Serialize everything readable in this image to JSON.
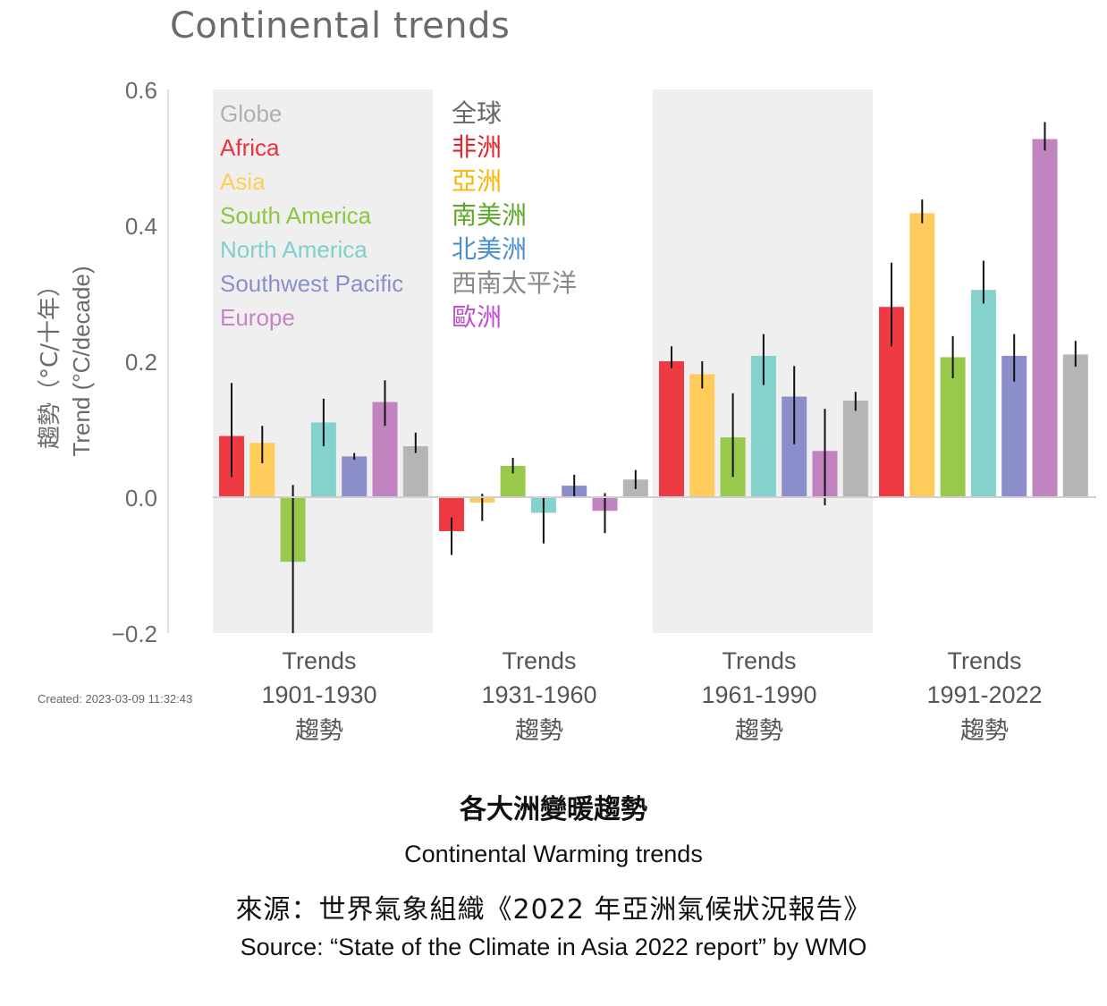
{
  "chart_data": {
    "type": "bar",
    "title": "Continental trends",
    "ylabel_zh": "趨勢（°C/十年）",
    "ylabel_en": "Trend (°C/decade)",
    "ylim": [
      -0.2,
      0.6
    ],
    "yticks": [
      {
        "value": 0.6,
        "label": "0.6"
      },
      {
        "value": 0.4,
        "label": "0.4"
      },
      {
        "value": 0.2,
        "label": "0.2"
      },
      {
        "value": 0.0,
        "label": "0.0"
      },
      {
        "value": -0.2,
        "label": "−0.2"
      }
    ],
    "created": "Created: 2023-03-09 11:32:43",
    "legend_placement": "top-left",
    "series": [
      {
        "name": "Africa",
        "name_zh": "非洲",
        "color": "#ee3a43"
      },
      {
        "name": "Asia",
        "name_zh": "亞洲",
        "color": "#ffcc5c"
      },
      {
        "name": "South America",
        "name_zh": "南美洲",
        "color": "#98c94a"
      },
      {
        "name": "North America",
        "name_zh": "北美洲",
        "color": "#85d1cc"
      },
      {
        "name": "Southwest Pacific",
        "name_zh": "西南太平洋",
        "color": "#8b8ec9"
      },
      {
        "name": "Europe",
        "name_zh": "歐洲",
        "color": "#c284c1"
      },
      {
        "name": "Globe",
        "name_zh": "全球",
        "color": "#b5b5b5"
      }
    ],
    "legend_order": [
      "Globe",
      "Africa",
      "Asia",
      "South America",
      "North America",
      "Southwest Pacific",
      "Europe"
    ],
    "legend_text_colors": {
      "Globe": "#b0b0b0",
      "Africa": "#e8333d",
      "Asia": "#ffce5a",
      "South America": "#8ec63f",
      "North America": "#7fd0ca",
      "Southwest Pacific": "#8a8fcb",
      "Europe": "#c585c5"
    },
    "legend_zh_colors": {
      "Globe": "#666666",
      "Africa": "#e8212b",
      "Asia": "#f7b500",
      "South America": "#5ea827",
      "North America": "#4a8ecf",
      "Southwest Pacific": "#8a8a8a",
      "Europe": "#c14ccf"
    },
    "groups": [
      {
        "label_en": "Trends",
        "period": "1901-1930",
        "label_zh": "趨勢",
        "shaded": true,
        "values": [
          0.09,
          0.08,
          -0.095,
          0.11,
          0.06,
          0.14,
          0.075
        ],
        "err_low": [
          0.03,
          0.05,
          -0.2,
          0.075,
          0.055,
          0.105,
          0.065
        ],
        "err_high": [
          0.168,
          0.105,
          0.018,
          0.145,
          0.065,
          0.172,
          0.095
        ]
      },
      {
        "label_en": "Trends",
        "period": "1931-1960",
        "label_zh": "趨勢",
        "shaded": false,
        "values": [
          -0.05,
          -0.008,
          0.046,
          -0.023,
          0.017,
          -0.02,
          0.026
        ],
        "err_low": [
          -0.085,
          -0.035,
          0.035,
          -0.068,
          0.0,
          -0.053,
          0.012
        ],
        "err_high": [
          -0.03,
          0.005,
          0.058,
          0.0,
          0.033,
          0.006,
          0.04
        ]
      },
      {
        "label_en": "Trends",
        "period": "1961-1990",
        "label_zh": "趨勢",
        "shaded": true,
        "values": [
          0.2,
          0.181,
          0.088,
          0.208,
          0.148,
          0.068,
          0.142
        ],
        "err_low": [
          0.19,
          0.16,
          0.03,
          0.165,
          0.078,
          -0.012,
          0.127
        ],
        "err_high": [
          0.222,
          0.2,
          0.153,
          0.24,
          0.193,
          0.13,
          0.155
        ]
      },
      {
        "label_en": "Trends",
        "period": "1991-2022",
        "label_zh": "趨勢",
        "shaded": false,
        "values": [
          0.28,
          0.418,
          0.206,
          0.305,
          0.208,
          0.527,
          0.21
        ],
        "err_low": [
          0.222,
          0.403,
          0.175,
          0.285,
          0.17,
          0.51,
          0.192
        ],
        "err_high": [
          0.345,
          0.438,
          0.237,
          0.348,
          0.24,
          0.552,
          0.23
        ]
      }
    ]
  },
  "caption": {
    "title_zh": "各大洲變暖趨勢",
    "title_en": "Continental Warming trends",
    "source_zh": "來源：世界氣象組織《2022 年亞洲氣候狀況報告》",
    "source_en": "Source: “State of the Climate in Asia 2022 report” by WMO"
  }
}
